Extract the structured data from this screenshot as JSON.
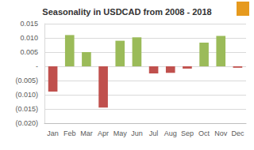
{
  "chart_data": {
    "type": "bar",
    "title": "Seasonality in USDCAD from 2008 - 2018",
    "categories": [
      "Jan",
      "Feb",
      "Mar",
      "Apr",
      "May",
      "Jun",
      "Jul",
      "Aug",
      "Sep",
      "Oct",
      "Nov",
      "Dec"
    ],
    "values": [
      -0.0089,
      0.011,
      0.005,
      -0.0145,
      0.009,
      0.0102,
      -0.0025,
      -0.0023,
      -0.0008,
      0.0083,
      0.0107,
      -0.0005
    ],
    "colors": [
      "#c0504d",
      "#9bbb59",
      "#9bbb59",
      "#c0504d",
      "#9bbb59",
      "#9bbb59",
      "#c0504d",
      "#c0504d",
      "#c0504d",
      "#9bbb59",
      "#9bbb59",
      "#c0504d"
    ],
    "ylim": [
      -0.02,
      0.015
    ],
    "yticks": [
      {
        "value": -0.02,
        "label": "(0.020)"
      },
      {
        "value": -0.015,
        "label": "(0.015)"
      },
      {
        "value": -0.01,
        "label": "(0.010)"
      },
      {
        "value": -0.005,
        "label": "(0.005)"
      },
      {
        "value": 0,
        "label": "-"
      },
      0.005,
      {
        "value": 0.01,
        "label": "0.010"
      },
      0.015
    ],
    "grid": true
  }
}
